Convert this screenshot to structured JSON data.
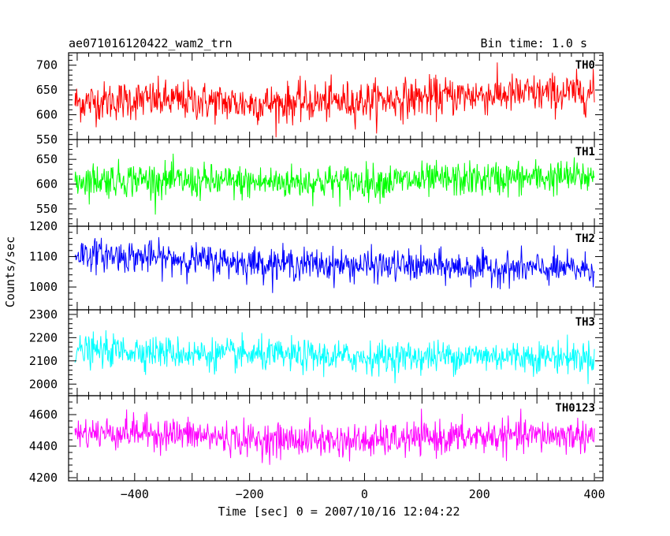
{
  "header": {
    "left_title": "ae071016120422_wam2_trn",
    "right_title": "Bin time: 1.0 s"
  },
  "chart_data": {
    "type": "line",
    "title": "ae071016120422_wam2_trn",
    "subtitle": "Bin time: 1.0 s",
    "xlabel": "Time [sec] 0 = 2007/10/16 12:04:22",
    "ylabel": "Counts/sec",
    "xlim": [
      -515,
      415
    ],
    "x_ticks": [
      -400,
      -200,
      0,
      200,
      400
    ],
    "x_tick_labels": [
      "−400",
      "−200",
      "0",
      "200",
      "400"
    ],
    "x_range_data": [
      -504,
      400
    ],
    "bin_time_s": 1.0,
    "grid": false,
    "legend": "panel labels at top-right of each panel",
    "panels": [
      {
        "name": "TH0",
        "color": "#ff0000",
        "ylim": [
          550,
          725
        ],
        "y_ticks": [
          550,
          600,
          650,
          700
        ],
        "y_tick_labels": [
          "550",
          "600",
          "650",
          "700"
        ],
        "series": [
          {
            "name": "TH0",
            "x": [
              -500,
              -400,
              -300,
              -200,
              -100,
              0,
              100,
              200,
              300,
              400
            ],
            "y": [
              625,
              630,
              628,
              622,
              625,
              628,
              635,
              640,
              642,
              645
            ]
          }
        ],
        "noise_amplitude": 32
      },
      {
        "name": "TH1",
        "color": "#00ff00",
        "ylim": [
          515,
          690
        ],
        "y_ticks": [
          550,
          600,
          650
        ],
        "y_tick_labels": [
          "550",
          "600",
          "650"
        ],
        "series": [
          {
            "name": "TH1",
            "x": [
              -500,
              -400,
              -300,
              -200,
              -100,
              0,
              100,
              200,
              300,
              400
            ],
            "y": [
              608,
              610,
              605,
              603,
              605,
              605,
              607,
              610,
              613,
              615
            ]
          }
        ],
        "noise_amplitude": 28
      },
      {
        "name": "TH2",
        "color": "#0000ff",
        "ylim": [
          925,
          1200
        ],
        "y_ticks": [
          1000,
          1100,
          1200
        ],
        "y_tick_labels": [
          "1000",
          "1100",
          "1200"
        ],
        "series": [
          {
            "name": "TH2",
            "x": [
              -500,
              -400,
              -300,
              -200,
              -100,
              0,
              100,
              200,
              300,
              400
            ],
            "y": [
              1110,
              1100,
              1090,
              1080,
              1075,
              1070,
              1068,
              1062,
              1060,
              1058
            ]
          }
        ],
        "noise_amplitude": 42
      },
      {
        "name": "TH3",
        "color": "#00ffff",
        "ylim": [
          1950,
          2320
        ],
        "y_ticks": [
          2000,
          2100,
          2200,
          2300
        ],
        "y_tick_labels": [
          "2000",
          "2100",
          "2200",
          "2300"
        ],
        "series": [
          {
            "name": "TH3",
            "x": [
              -500,
              -400,
              -300,
              -200,
              -100,
              0,
              100,
              200,
              300,
              400
            ],
            "y": [
              2140,
              2145,
              2130,
              2125,
              2120,
              2115,
              2118,
              2122,
              2118,
              2115
            ]
          }
        ],
        "noise_amplitude": 55
      },
      {
        "name": "TH0123",
        "color": "#ff00ff",
        "ylim": [
          4180,
          4720
        ],
        "y_ticks": [
          4200,
          4400,
          4600
        ],
        "y_tick_labels": [
          "4200",
          "4400",
          "4600"
        ],
        "series": [
          {
            "name": "TH0123",
            "x": [
              -500,
              -400,
              -300,
              -200,
              -100,
              0,
              100,
              200,
              300,
              400
            ],
            "y": [
              4480,
              4490,
              4470,
              4440,
              4440,
              4430,
              4450,
              4460,
              4465,
              4470
            ]
          }
        ],
        "noise_amplitude": 85
      }
    ]
  }
}
